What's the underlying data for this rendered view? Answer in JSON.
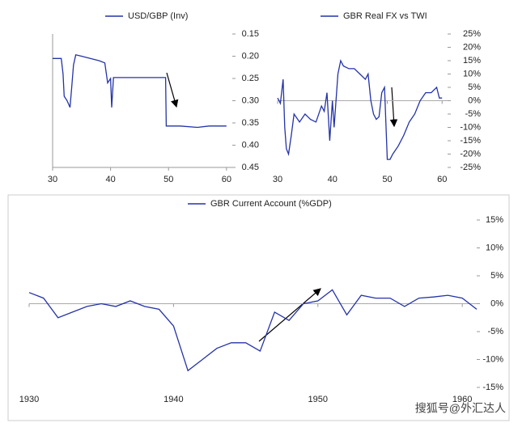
{
  "chart_data": [
    {
      "type": "line",
      "legend": "top",
      "x": [
        30,
        31.5,
        31.8,
        32,
        32.5,
        33,
        33.3,
        33.6,
        34,
        35,
        36.5,
        38,
        39,
        39.5,
        40,
        40.2,
        40.5,
        49.5,
        49.6,
        52,
        55,
        57,
        60
      ],
      "series": [
        {
          "name": "USD/GBP (Inv)",
          "color": "#2433a8",
          "values": [
            0.205,
            0.205,
            0.24,
            0.29,
            0.3,
            0.315,
            0.27,
            0.22,
            0.197,
            0.2,
            0.205,
            0.21,
            0.215,
            0.26,
            0.25,
            0.315,
            0.248,
            0.248,
            0.357,
            0.357,
            0.36,
            0.357,
            0.357
          ]
        }
      ],
      "xlim": [
        30,
        61
      ],
      "xticks": [
        30,
        40,
        50,
        60
      ],
      "ylim": [
        0.15,
        0.45
      ],
      "y_inverted": true,
      "yticks": [
        0.15,
        {
          "value": 0.2,
          "label": "0.20"
        },
        0.25,
        {
          "value": 0.3,
          "label": "0.30"
        },
        0.35,
        {
          "value": 0.4,
          "label": "0.40"
        },
        0.45
      ]
    },
    {
      "type": "line",
      "legend": "top",
      "x": [
        30,
        30.5,
        31,
        31.3,
        31.6,
        32,
        32.5,
        33,
        34,
        35,
        36,
        37,
        38,
        38.5,
        39,
        39.5,
        40,
        40.3,
        41,
        41.5,
        42,
        43,
        44,
        45,
        46,
        46.5,
        47,
        47.5,
        48,
        48.5,
        49,
        49.5,
        50,
        50.5,
        51,
        52,
        53,
        54,
        55,
        56,
        57,
        58,
        59,
        59.5,
        60
      ],
      "series": [
        {
          "name": "GBR Real FX vs TWI",
          "color": "#2433a8",
          "values": [
            1,
            -1,
            8,
            -10,
            -18,
            -20,
            -13,
            -5,
            -8,
            -5,
            -7,
            -8,
            -2,
            -4,
            3,
            -15,
            0,
            -10,
            10,
            15,
            13,
            12,
            12,
            10,
            8,
            10,
            0,
            -5,
            -7,
            -6,
            3,
            5,
            -22,
            -22,
            -20,
            -17,
            -13,
            -8,
            -5,
            0,
            3,
            3,
            5,
            1,
            1
          ]
        }
      ],
      "xlim": [
        30,
        61
      ],
      "xticks": [
        30,
        40,
        50,
        60
      ],
      "ylim": [
        -25,
        25
      ],
      "yticks": [
        {
          "value": 25,
          "label": "25%"
        },
        {
          "value": 20,
          "label": "20%"
        },
        {
          "value": 15,
          "label": "15%"
        },
        {
          "value": 10,
          "label": "10%"
        },
        {
          "value": 5,
          "label": "5%"
        },
        {
          "value": 0,
          "label": "0%"
        },
        {
          "value": -5,
          "label": "-5%"
        },
        {
          "value": -10,
          "label": "-10%"
        },
        {
          "value": -15,
          "label": "-15%"
        },
        {
          "value": -20,
          "label": "-20%"
        },
        {
          "value": -25,
          "label": "-25%"
        }
      ]
    },
    {
      "type": "line",
      "legend": "top",
      "x": [
        1930,
        1931,
        1932,
        1933,
        1934,
        1935,
        1936,
        1937,
        1938,
        1939,
        1940,
        1941,
        1942,
        1943,
        1944,
        1945,
        1946,
        1947,
        1948,
        1949,
        1950,
        1951,
        1952,
        1953,
        1954,
        1955,
        1956,
        1957,
        1958,
        1959,
        1960,
        1961
      ],
      "series": [
        {
          "name": "GBR Current Account (%GDP)",
          "color": "#2433a8",
          "values": [
            2,
            1,
            -2.5,
            -1.5,
            -0.5,
            0,
            -0.5,
            0.5,
            -0.5,
            -1,
            -4,
            -12,
            -10,
            -8,
            -7,
            -7,
            -8.5,
            -1.5,
            -3,
            0,
            0.5,
            2.5,
            -2,
            1.5,
            1,
            1,
            -0.5,
            1,
            1.2,
            1.5,
            1,
            -1
          ]
        }
      ],
      "xlim": [
        1930,
        1961
      ],
      "xticks": [
        1930,
        1940,
        1950,
        1960
      ],
      "ylim": [
        -15,
        15
      ],
      "yticks": [
        {
          "value": 15,
          "label": "15%"
        },
        {
          "value": 10,
          "label": "10%"
        },
        {
          "value": 5,
          "label": "5%"
        },
        {
          "value": 0,
          "label": "0%"
        },
        {
          "value": -5,
          "label": "-5%"
        },
        {
          "value": -10,
          "label": "-10%"
        },
        {
          "value": -15,
          "label": "-15%"
        }
      ]
    }
  ],
  "watermark": "搜狐号@外汇达人"
}
